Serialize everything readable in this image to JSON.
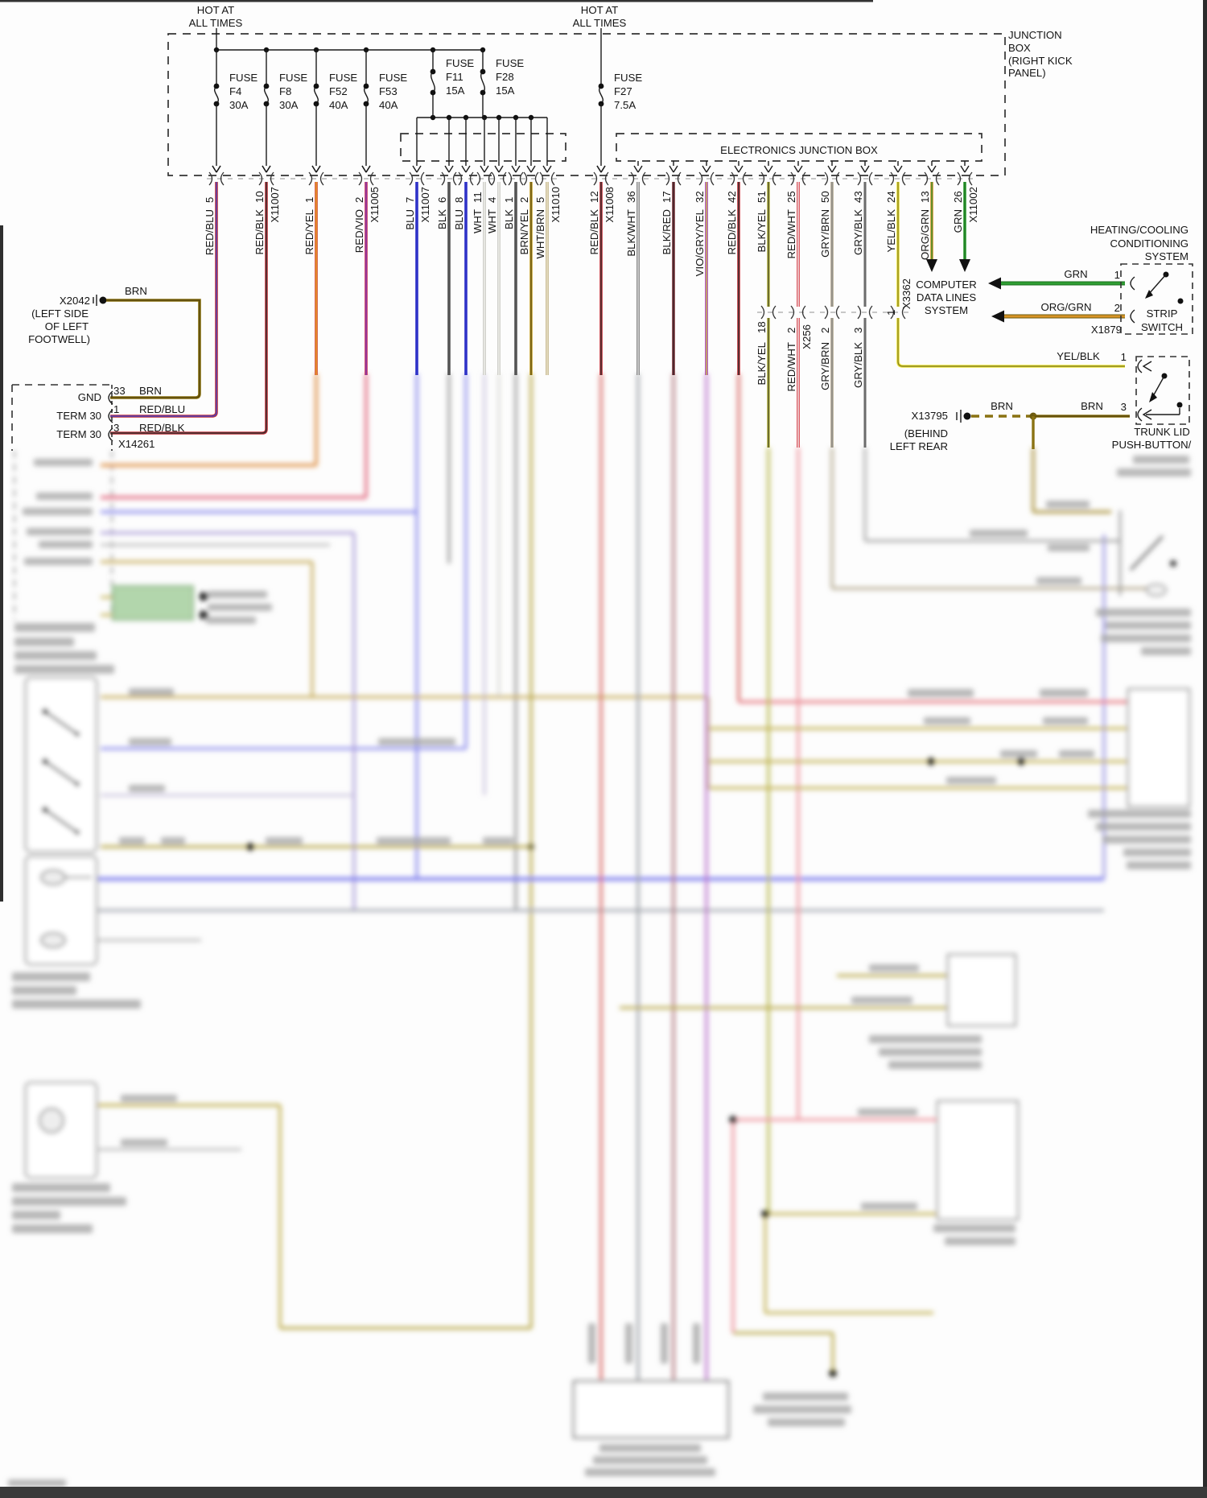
{
  "power": {
    "hot1": [
      "HOT AT",
      "ALL TIMES"
    ],
    "hot2": [
      "HOT AT",
      "ALL TIMES"
    ]
  },
  "junction_box": {
    "label": [
      "JUNCTION",
      "BOX",
      "(RIGHT KICK",
      "PANEL)"
    ],
    "electronics_label": "ELECTRONICS JUNCTION BOX"
  },
  "fuses": [
    {
      "name": "FUSE",
      "id": "F4",
      "amps": "30A"
    },
    {
      "name": "FUSE",
      "id": "F8",
      "amps": "30A"
    },
    {
      "name": "FUSE",
      "id": "F52",
      "amps": "40A"
    },
    {
      "name": "FUSE",
      "id": "F53",
      "amps": "40A"
    },
    {
      "name": "FUSE",
      "id": "F11",
      "amps": "15A"
    },
    {
      "name": "FUSE",
      "id": "F28",
      "amps": "15A"
    },
    {
      "name": "FUSE",
      "id": "F27",
      "amps": "7.5A"
    }
  ],
  "wires": [
    {
      "pin": "5",
      "color": "RED/BLU"
    },
    {
      "pin": "10",
      "color": "RED/BLK",
      "connector": "X11007"
    },
    {
      "pin": "1",
      "color": "RED/YEL"
    },
    {
      "pin": "2",
      "color": "RED/VIO",
      "connector": "X11005"
    },
    {
      "pin": "7",
      "color": "BLU",
      "connector": "X11007"
    },
    {
      "pin": "6",
      "color": "BLK"
    },
    {
      "pin": "8",
      "color": "BLU"
    },
    {
      "pin": "11",
      "color": "WHT"
    },
    {
      "pin": "4",
      "color": "WHT"
    },
    {
      "pin": "1",
      "color": "BLK"
    },
    {
      "pin": "2",
      "color": "BRN/YEL"
    },
    {
      "pin": "5",
      "color": "WHT/BRN",
      "connector": "X11010"
    },
    {
      "pin": "12",
      "color": "RED/BLK",
      "connector": "X11008"
    },
    {
      "pin": "36",
      "color": "BLK/WHT"
    },
    {
      "pin": "17",
      "color": "BLK/RED"
    },
    {
      "pin": "32",
      "color": "VIO/GRY/YEL"
    },
    {
      "pin": "42",
      "color": "RED/BLK"
    },
    {
      "pin": "51",
      "color": "BLK/YEL"
    },
    {
      "pin": "25",
      "color": "RED/WHT"
    },
    {
      "pin": "50",
      "color": "GRY/BRN"
    },
    {
      "pin": "43",
      "color": "GRY/BLK"
    },
    {
      "pin": "24",
      "color": "YEL/BLK"
    },
    {
      "pin": "13",
      "color": "ORG/GRN"
    },
    {
      "pin": "26",
      "color": "GRN",
      "connector": "X11002"
    }
  ],
  "inline_connectors": [
    {
      "pin": "18",
      "color": "BLK/YEL"
    },
    {
      "pin": "2",
      "color": "RED/WHT",
      "connector": "X256"
    },
    {
      "pin": "2",
      "color": "GRY/BRN"
    },
    {
      "pin": "3",
      "color": "GRY/BLK"
    },
    {
      "pin": "1",
      "connector": "X3362"
    }
  ],
  "computer_data_lines": {
    "title": [
      "COMPUTER",
      "DATA LINES",
      "SYSTEM"
    ],
    "grn_wire": {
      "label": "GRN",
      "pin": "1"
    },
    "org_wire": {
      "label": "ORG/GRN",
      "pin": "2",
      "connector": "X1879"
    }
  },
  "heating": {
    "title": [
      "HEATING/COOLING",
      "CONDITIONING",
      "SYSTEM"
    ],
    "switch": [
      "STRIP",
      "SWITCH"
    ]
  },
  "trunk": {
    "name": [
      "TRUNK LID",
      "PUSH-BUTTON/"
    ],
    "yel_wire": {
      "label": "YEL/BLK",
      "pin": "1"
    },
    "brn_wire": {
      "label1": "BRN",
      "label2": "BRN",
      "pin": "3"
    }
  },
  "grounds": {
    "x13795": {
      "id": "X13795",
      "location": [
        "(BEHIND",
        "LEFT REAR"
      ]
    },
    "x2042": {
      "id": "X2042",
      "wire": "BRN",
      "location": [
        "(LEFT SIDE",
        "OF LEFT",
        "FOOTWELL)"
      ]
    }
  },
  "left_connector": {
    "id": "X14261",
    "rows": [
      {
        "label": "GND",
        "pin": "33",
        "wire": "BRN"
      },
      {
        "label": "TERM 30",
        "pin": "1",
        "wire": "RED/BLU"
      },
      {
        "label": "TERM 30",
        "pin": "3",
        "wire": "RED/BLK"
      }
    ]
  }
}
